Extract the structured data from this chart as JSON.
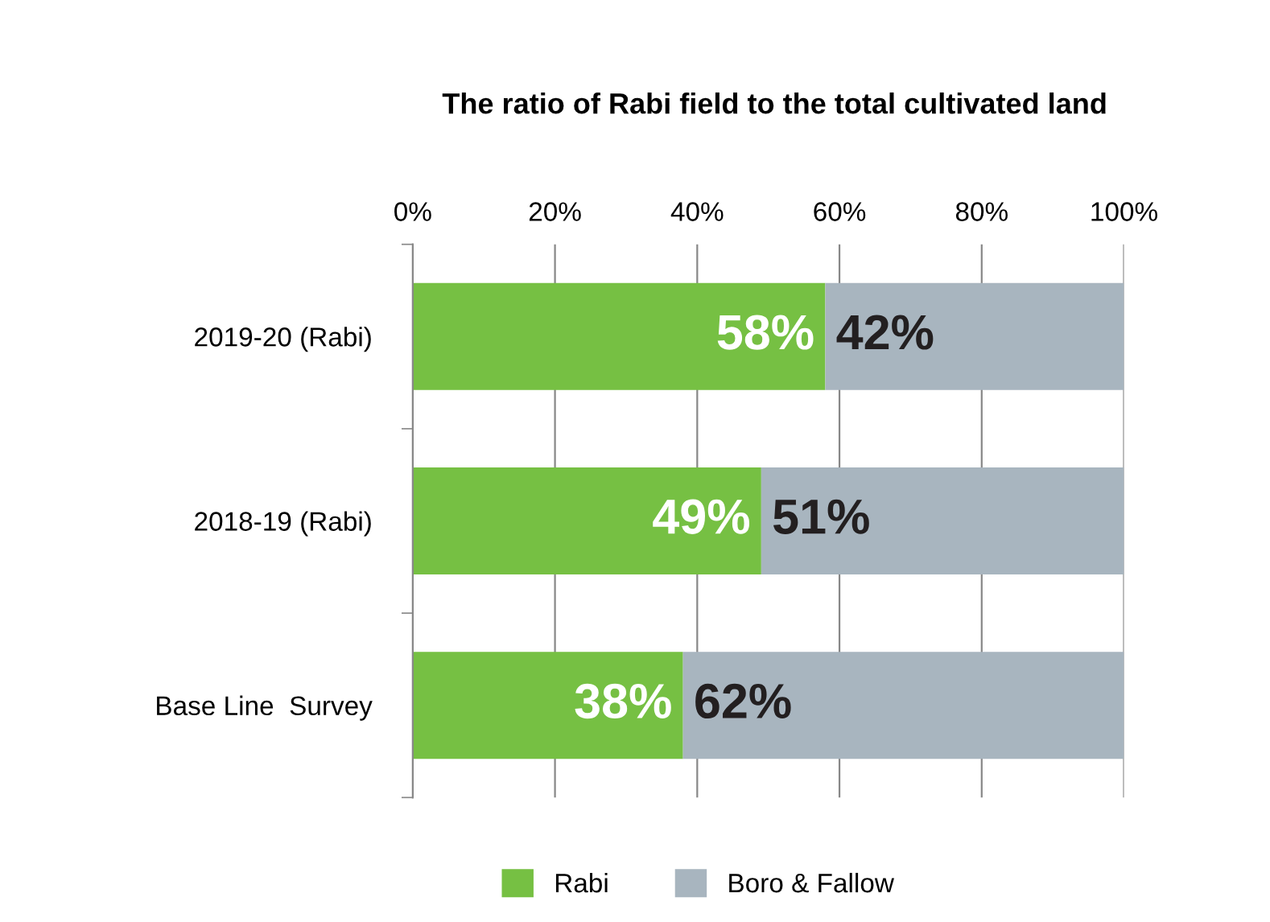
{
  "chart_data": {
    "type": "bar",
    "orientation": "horizontal",
    "stacked": true,
    "title": "The ratio of Rabi field to the total cultivated land",
    "categories": [
      "2019-20 (Rabi)",
      "2018-19 (Rabi)",
      "Base Line  Survey"
    ],
    "series": [
      {
        "name": "Rabi",
        "color": "#76c043",
        "values": [
          58,
          49,
          38
        ],
        "value_labels": [
          "58%",
          "49%",
          "38%"
        ]
      },
      {
        "name": "Boro & Fallow",
        "color": "#a8b5bf",
        "values": [
          42,
          51,
          62
        ],
        "value_labels": [
          "42%",
          "51%",
          "62%"
        ]
      }
    ],
    "xlim": [
      0,
      100
    ],
    "xticks": [
      {
        "value": 0,
        "label": "0%"
      },
      {
        "value": 20,
        "label": "20%"
      },
      {
        "value": 40,
        "label": "40%"
      },
      {
        "value": 60,
        "label": "60%"
      },
      {
        "value": 80,
        "label": "80%"
      },
      {
        "value": 100,
        "label": "100%"
      }
    ],
    "grid": "x",
    "legend": "bottom"
  }
}
